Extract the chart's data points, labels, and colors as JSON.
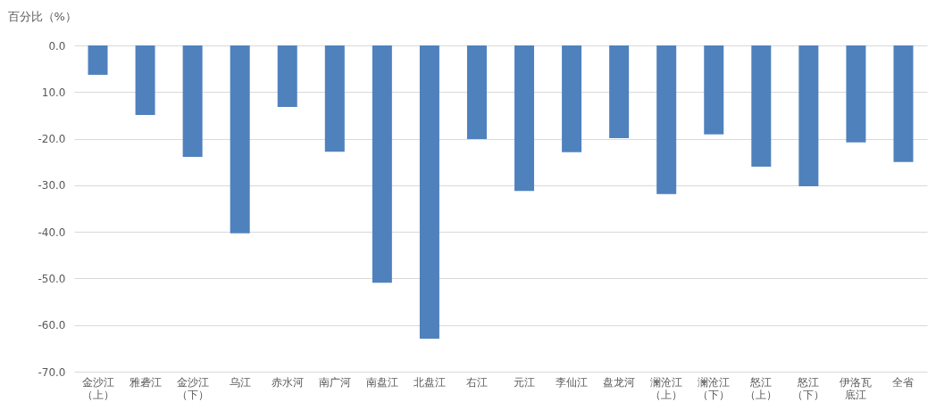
{
  "chart_data": {
    "type": "bar",
    "ylabel": "百分比（%）",
    "categories": [
      "金沙江（上）",
      "雅砻江",
      "金沙江（下）",
      "乌江",
      "赤水河",
      "南广河",
      "南盘江",
      "北盘江",
      "右江",
      "元江",
      "李仙江",
      "盘龙河",
      "澜沧江（上）",
      "澜沧江（下）",
      "怒江（上）",
      "怒江（下）",
      "伊洛瓦底江",
      "全省"
    ],
    "values": [
      -6.3,
      -14.9,
      -23.9,
      -40.3,
      -13.2,
      -22.8,
      -50.9,
      -62.9,
      -20.1,
      -31.2,
      -22.9,
      -19.9,
      -31.9,
      -19.1,
      -26.0,
      -30.2,
      -20.8,
      -25.0
    ],
    "color": "#4f81bd",
    "ylim": [
      -70,
      0
    ],
    "yticks": [
      {
        "value": 0,
        "label": "0.0"
      },
      {
        "value": -10,
        "label": "10.0"
      },
      {
        "value": -20,
        "label": "-20.0"
      },
      {
        "value": -30,
        "label": "-30.0"
      },
      {
        "value": -40,
        "label": "-40.0"
      },
      {
        "value": -50,
        "label": "-50.0"
      },
      {
        "value": -60,
        "label": "-60.0"
      },
      {
        "value": -70,
        "label": "-70.0"
      }
    ],
    "grid": "y"
  }
}
